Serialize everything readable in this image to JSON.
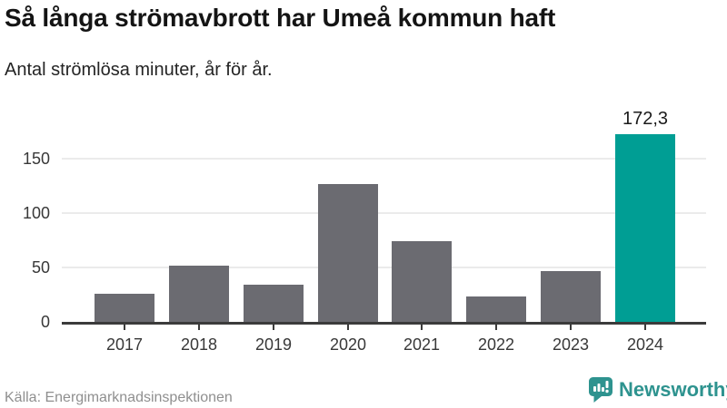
{
  "header": {
    "title": "Så långa strömavbrott har Umeå kommun haft",
    "subtitle": "Antal strömlösa minuter, år för år."
  },
  "chart_data": {
    "type": "bar",
    "title": "Så långa strömavbrott har Umeå kommun haft",
    "subtitle": "Antal strömlösa minuter, år för år.",
    "categories": [
      "2017",
      "2018",
      "2019",
      "2020",
      "2021",
      "2022",
      "2023",
      "2024"
    ],
    "values": [
      26,
      52,
      34,
      127,
      74,
      23,
      47,
      172.3
    ],
    "unit": "minuter",
    "ylim": [
      0,
      180
    ],
    "y_ticks": [
      0,
      50,
      100,
      150
    ],
    "grid": "horizontal",
    "legend": "none",
    "highlight_index": 7,
    "annotations": [
      {
        "index": 7,
        "text": "172,3"
      }
    ],
    "colors": {
      "bar": "#6b6b71",
      "highlight": "#009e94"
    }
  },
  "footer": {
    "source": "Källa: Energimarknadsinspektionen",
    "brand": "Newsworthy",
    "brand_color": "#2e938f"
  }
}
